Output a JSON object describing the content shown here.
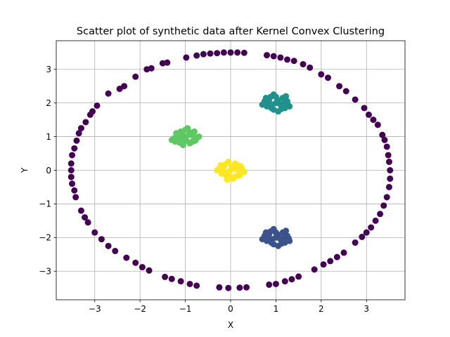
{
  "chart_data": {
    "type": "scatter",
    "title": "Scatter plot of synthetic data after Kernel Convex Clustering",
    "xlabel": "X",
    "ylabel": "Y",
    "xlim": [
      -3.85,
      3.85
    ],
    "ylim": [
      -3.85,
      3.85
    ],
    "xticks": [
      -3,
      -2,
      -1,
      0,
      1,
      2,
      3
    ],
    "yticks": [
      -3,
      -2,
      -1,
      0,
      1,
      2,
      3
    ],
    "xtick_labels": [
      "−3",
      "−2",
      "−1",
      "0",
      "1",
      "2",
      "3"
    ],
    "ytick_labels": [
      "−3",
      "−2",
      "−1",
      "0",
      "1",
      "2",
      "3"
    ],
    "grid": true,
    "legend": "none",
    "series": [
      {
        "color": "#440154",
        "points": [
          [
            0.0,
            3.5
          ],
          [
            0.15,
            3.5
          ],
          [
            -0.15,
            3.5
          ],
          [
            0.3,
            3.49
          ],
          [
            -0.3,
            3.48
          ],
          [
            -0.45,
            3.47
          ],
          [
            -0.6,
            3.45
          ],
          [
            -0.75,
            3.41
          ],
          [
            0.8,
            3.42
          ],
          [
            0.95,
            3.39
          ],
          [
            1.1,
            3.35
          ],
          [
            1.25,
            3.29
          ],
          [
            -0.98,
            3.35
          ],
          [
            -1.4,
            3.2
          ],
          [
            -1.5,
            3.18
          ],
          [
            -1.75,
            3.03
          ],
          [
            -1.85,
            3.0
          ],
          [
            -2.1,
            2.78
          ],
          [
            -2.35,
            2.5
          ],
          [
            -2.45,
            2.42
          ],
          [
            -2.7,
            2.28
          ],
          [
            -2.95,
            1.92
          ],
          [
            -3.05,
            1.75
          ],
          [
            -3.1,
            1.65
          ],
          [
            -3.2,
            1.43
          ],
          [
            -3.3,
            1.25
          ],
          [
            -3.35,
            1.1
          ],
          [
            -3.4,
            0.88
          ],
          [
            -3.45,
            0.65
          ],
          [
            -3.5,
            0.45
          ],
          [
            -3.52,
            0.2
          ],
          [
            -3.52,
            0.0
          ],
          [
            -3.52,
            -0.2
          ],
          [
            -3.5,
            -0.4
          ],
          [
            -3.45,
            -0.6
          ],
          [
            -3.42,
            -0.8
          ],
          [
            -3.3,
            -1.2
          ],
          [
            -3.22,
            -1.4
          ],
          [
            -3.15,
            -1.55
          ],
          [
            -3.0,
            -1.85
          ],
          [
            -2.85,
            -2.05
          ],
          [
            -2.7,
            -2.25
          ],
          [
            -2.55,
            -2.4
          ],
          [
            -2.3,
            -2.6
          ],
          [
            -2.1,
            -2.75
          ],
          [
            -1.95,
            -2.88
          ],
          [
            -1.8,
            -2.98
          ],
          [
            -1.45,
            -3.17
          ],
          [
            -1.3,
            -3.23
          ],
          [
            -1.1,
            -3.3
          ],
          [
            -0.9,
            -3.38
          ],
          [
            -0.75,
            -3.43
          ],
          [
            -0.25,
            -3.48
          ],
          [
            -0.05,
            -3.5
          ],
          [
            0.2,
            -3.49
          ],
          [
            0.35,
            -3.48
          ],
          [
            0.85,
            -3.4
          ],
          [
            1.0,
            -3.38
          ],
          [
            1.2,
            -3.3
          ],
          [
            1.35,
            -3.24
          ],
          [
            1.5,
            -3.16
          ],
          [
            1.85,
            -2.95
          ],
          [
            2.05,
            -2.8
          ],
          [
            2.2,
            -2.7
          ],
          [
            2.35,
            -2.58
          ],
          [
            2.5,
            -2.45
          ],
          [
            2.75,
            -2.15
          ],
          [
            2.9,
            -1.98
          ],
          [
            3.0,
            -1.85
          ],
          [
            3.1,
            -1.7
          ],
          [
            3.2,
            -1.5
          ],
          [
            3.3,
            -1.3
          ],
          [
            3.38,
            -1.05
          ],
          [
            3.45,
            -0.8
          ],
          [
            3.5,
            -0.5
          ],
          [
            3.52,
            -0.25
          ],
          [
            3.52,
            0.0
          ],
          [
            3.5,
            0.25
          ],
          [
            3.48,
            0.45
          ],
          [
            3.45,
            0.7
          ],
          [
            3.4,
            0.9
          ],
          [
            3.35,
            1.05
          ],
          [
            3.25,
            1.35
          ],
          [
            3.15,
            1.5
          ],
          [
            3.05,
            1.65
          ],
          [
            2.95,
            1.85
          ],
          [
            2.75,
            2.1
          ],
          [
            2.55,
            2.35
          ],
          [
            2.4,
            2.5
          ],
          [
            2.15,
            2.75
          ],
          [
            2.0,
            2.85
          ],
          [
            1.75,
            3.05
          ],
          [
            1.4,
            3.25
          ],
          [
            1.6,
            3.15
          ]
        ]
      },
      {
        "color": "#3b528b",
        "cluster_center": [
          1.0,
          -2.0
        ],
        "points": [
          [
            1.0,
            -2.0
          ],
          [
            0.85,
            -1.9
          ],
          [
            1.15,
            -1.85
          ],
          [
            0.8,
            -2.1
          ],
          [
            1.2,
            -2.15
          ],
          [
            0.95,
            -1.75
          ],
          [
            1.05,
            -2.25
          ],
          [
            0.75,
            -1.95
          ],
          [
            1.25,
            -1.95
          ],
          [
            0.9,
            -2.15
          ],
          [
            1.1,
            -2.05
          ],
          [
            0.7,
            -2.05
          ],
          [
            1.3,
            -2.1
          ],
          [
            1.0,
            -1.85
          ],
          [
            0.88,
            -1.82
          ],
          [
            1.12,
            -2.18
          ],
          [
            0.78,
            -1.85
          ],
          [
            1.22,
            -1.8
          ],
          [
            0.95,
            -2.2
          ],
          [
            1.18,
            -2.0
          ],
          [
            0.82,
            -2.0
          ],
          [
            1.05,
            -1.92
          ],
          [
            0.92,
            -2.05
          ],
          [
            1.28,
            -2.02
          ]
        ]
      },
      {
        "color": "#21918c",
        "cluster_center": [
          1.0,
          2.0
        ],
        "points": [
          [
            1.0,
            2.0
          ],
          [
            0.85,
            2.1
          ],
          [
            1.15,
            2.15
          ],
          [
            0.8,
            1.9
          ],
          [
            1.2,
            1.85
          ],
          [
            0.95,
            2.25
          ],
          [
            1.05,
            1.75
          ],
          [
            0.75,
            2.05
          ],
          [
            1.25,
            2.05
          ],
          [
            0.9,
            1.85
          ],
          [
            1.1,
            1.95
          ],
          [
            0.7,
            1.95
          ],
          [
            1.3,
            1.9
          ],
          [
            1.0,
            2.18
          ],
          [
            0.88,
            2.18
          ],
          [
            1.12,
            1.82
          ],
          [
            0.78,
            2.15
          ],
          [
            1.22,
            2.2
          ],
          [
            0.95,
            1.8
          ],
          [
            1.18,
            2.0
          ],
          [
            0.82,
            2.0
          ],
          [
            1.05,
            2.08
          ],
          [
            0.92,
            1.95
          ],
          [
            1.25,
            1.98
          ]
        ]
      },
      {
        "color": "#5ec962",
        "cluster_center": [
          -1.0,
          1.0
        ],
        "points": [
          [
            -1.0,
            1.0
          ],
          [
            -1.15,
            0.9
          ],
          [
            -0.85,
            0.85
          ],
          [
            -1.2,
            1.1
          ],
          [
            -0.8,
            1.15
          ],
          [
            -1.05,
            0.75
          ],
          [
            -0.95,
            1.25
          ],
          [
            -1.25,
            0.95
          ],
          [
            -0.75,
            0.95
          ],
          [
            -1.1,
            1.15
          ],
          [
            -0.9,
            0.8
          ],
          [
            -1.3,
            0.9
          ],
          [
            -0.7,
            1.0
          ],
          [
            -1.0,
            1.2
          ],
          [
            -1.12,
            0.82
          ],
          [
            -0.88,
            1.12
          ],
          [
            -1.22,
            0.85
          ],
          [
            -0.78,
            0.88
          ],
          [
            -1.05,
            0.95
          ],
          [
            -0.92,
            1.05
          ],
          [
            -1.18,
            1.02
          ],
          [
            -0.82,
            1.02
          ],
          [
            -0.98,
            0.88
          ],
          [
            -1.08,
            1.08
          ]
        ]
      },
      {
        "color": "#fde725",
        "cluster_center": [
          0.0,
          0.0
        ],
        "points": [
          [
            0.0,
            0.0
          ],
          [
            -0.15,
            0.1
          ],
          [
            0.15,
            0.15
          ],
          [
            -0.2,
            -0.1
          ],
          [
            0.2,
            -0.15
          ],
          [
            -0.05,
            0.25
          ],
          [
            0.05,
            -0.25
          ],
          [
            -0.25,
            0.05
          ],
          [
            0.25,
            0.05
          ],
          [
            -0.1,
            -0.15
          ],
          [
            0.1,
            0.2
          ],
          [
            -0.3,
            0.0
          ],
          [
            0.3,
            -0.05
          ],
          [
            0.0,
            -0.2
          ],
          [
            -0.12,
            0.18
          ],
          [
            0.12,
            -0.18
          ],
          [
            -0.22,
            0.15
          ],
          [
            0.22,
            0.12
          ],
          [
            -0.05,
            -0.05
          ],
          [
            0.08,
            0.05
          ],
          [
            -0.18,
            -0.02
          ],
          [
            0.18,
            -0.02
          ],
          [
            0.02,
            0.12
          ],
          [
            -0.08,
            -0.28
          ]
        ]
      }
    ]
  }
}
